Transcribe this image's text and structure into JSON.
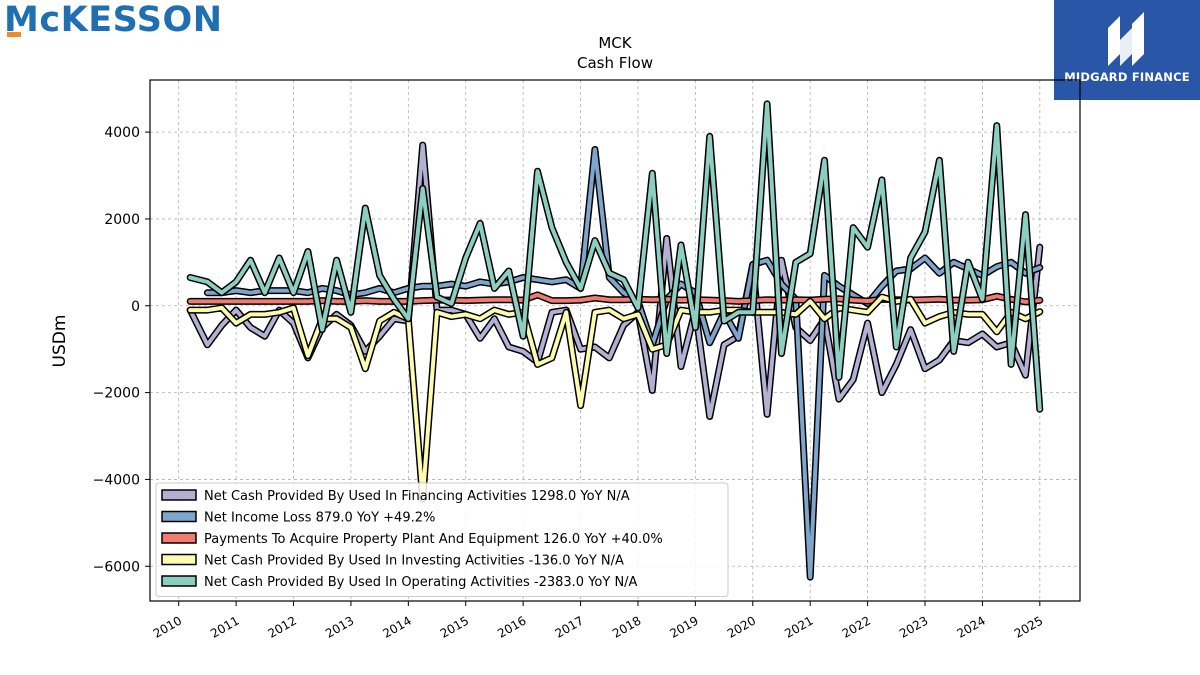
{
  "branding": {
    "company_logo_text": "McKESSON",
    "badge_text": "MIDGARD FINANCE"
  },
  "chart_data": {
    "type": "line",
    "title": "MCK",
    "subtitle": "Cash Flow",
    "ylabel": "USDm",
    "xlabel": "",
    "xlim": [
      2009.5,
      2025.7
    ],
    "ylim": [
      -6800,
      5200
    ],
    "x_ticks": [
      2010,
      2011,
      2012,
      2013,
      2014,
      2015,
      2016,
      2017,
      2018,
      2019,
      2020,
      2021,
      2022,
      2023,
      2024,
      2025
    ],
    "y_ticks": [
      -6000,
      -4000,
      -2000,
      0,
      2000,
      4000
    ],
    "grid": true,
    "legend_position": "lower-left",
    "series": [
      {
        "name": "Net Cash Provided By Used In Financing Activities  1298.0 YoY N/A",
        "color": "#b3b0d4",
        "x": [
          2010.2,
          2010.5,
          2010.75,
          2011.0,
          2011.25,
          2011.5,
          2011.75,
          2012.0,
          2012.25,
          2012.5,
          2012.75,
          2013.0,
          2013.25,
          2013.5,
          2013.75,
          2014.0,
          2014.25,
          2014.5,
          2014.75,
          2015.0,
          2015.25,
          2015.5,
          2015.75,
          2016.0,
          2016.25,
          2016.5,
          2016.75,
          2017.0,
          2017.25,
          2017.5,
          2017.75,
          2018.0,
          2018.25,
          2018.5,
          2018.75,
          2019.0,
          2019.25,
          2019.5,
          2019.75,
          2020.0,
          2020.25,
          2020.5,
          2020.75,
          2021.0,
          2021.25,
          2021.5,
          2021.75,
          2022.0,
          2022.25,
          2022.5,
          2022.75,
          2023.0,
          2023.25,
          2023.5,
          2023.75,
          2024.0,
          2024.25,
          2024.5,
          2024.75,
          2025.0
        ],
        "values": [
          -100,
          -900,
          -450,
          -100,
          -500,
          -700,
          -100,
          -400,
          -1200,
          -500,
          -200,
          -450,
          -1050,
          -700,
          -300,
          -350,
          3700,
          -100,
          -100,
          -200,
          -750,
          -300,
          -950,
          -1050,
          -1300,
          -150,
          -100,
          -1000,
          -950,
          -1200,
          -450,
          -150,
          -1950,
          1550,
          -1400,
          -100,
          -2550,
          -900,
          -700,
          950,
          -2500,
          1050,
          -500,
          -800,
          -300,
          -2150,
          -1700,
          -400,
          -2000,
          -1350,
          -550,
          -1450,
          -1250,
          -800,
          -850,
          -650,
          -950,
          -850,
          -1600,
          1350
        ]
      },
      {
        "name": "Net Income Loss  879.0 YoY +49.2%",
        "color": "#7ea6cc",
        "x": [
          2010.5,
          2010.75,
          2011.0,
          2011.25,
          2011.5,
          2011.75,
          2012.0,
          2012.25,
          2012.5,
          2012.75,
          2013.0,
          2013.25,
          2013.5,
          2013.75,
          2014.0,
          2014.25,
          2014.5,
          2014.75,
          2015.0,
          2015.25,
          2015.5,
          2015.75,
          2016.0,
          2016.25,
          2016.5,
          2016.75,
          2017.0,
          2017.25,
          2017.5,
          2017.75,
          2018.0,
          2018.25,
          2018.5,
          2018.75,
          2019.0,
          2019.25,
          2019.5,
          2019.75,
          2020.0,
          2020.25,
          2020.5,
          2020.75,
          2021.0,
          2021.25,
          2021.5,
          2021.75,
          2022.0,
          2022.25,
          2022.5,
          2022.75,
          2023.0,
          2023.25,
          2023.5,
          2023.75,
          2024.0,
          2024.25,
          2024.5,
          2024.75,
          2025.0
        ],
        "values": [
          300,
          300,
          350,
          300,
          350,
          350,
          350,
          300,
          400,
          350,
          250,
          300,
          400,
          300,
          400,
          450,
          450,
          500,
          450,
          550,
          500,
          550,
          650,
          600,
          550,
          600,
          400,
          3600,
          650,
          300,
          100,
          -900,
          150,
          500,
          300,
          -850,
          -150,
          -750,
          950,
          1050,
          500,
          150,
          -6250,
          700,
          450,
          250,
          50,
          450,
          800,
          850,
          1100,
          750,
          1000,
          850,
          700,
          900,
          1000,
          750,
          879
        ]
      },
      {
        "name": "Payments To Acquire Property Plant And Equipment  126.0 YoY +40.0%",
        "color": "#f07b72",
        "x": [
          2010.2,
          2010.5,
          2010.75,
          2011.0,
          2011.25,
          2011.5,
          2011.75,
          2012.0,
          2012.25,
          2012.5,
          2012.75,
          2013.0,
          2013.25,
          2013.5,
          2013.75,
          2014.0,
          2014.25,
          2014.5,
          2014.75,
          2015.0,
          2015.25,
          2015.5,
          2015.75,
          2016.0,
          2016.25,
          2016.5,
          2016.75,
          2017.0,
          2017.25,
          2017.5,
          2017.75,
          2018.0,
          2018.25,
          2018.5,
          2018.75,
          2019.0,
          2019.25,
          2019.5,
          2019.75,
          2020.0,
          2020.25,
          2020.5,
          2020.75,
          2021.0,
          2021.25,
          2021.5,
          2021.75,
          2022.0,
          2022.25,
          2022.5,
          2022.75,
          2023.0,
          2023.25,
          2023.5,
          2023.75,
          2024.0,
          2024.25,
          2024.5,
          2024.75,
          2025.0
        ],
        "values": [
          100,
          100,
          100,
          100,
          100,
          100,
          100,
          100,
          100,
          120,
          100,
          100,
          120,
          100,
          100,
          100,
          120,
          130,
          130,
          120,
          130,
          140,
          140,
          130,
          250,
          120,
          120,
          130,
          180,
          140,
          140,
          150,
          140,
          150,
          130,
          140,
          130,
          120,
          100,
          120,
          140,
          130,
          140,
          130,
          150,
          160,
          130,
          110,
          150,
          140,
          130,
          140,
          150,
          130,
          130,
          140,
          220,
          150,
          90,
          126
        ]
      },
      {
        "name": "Net Cash Provided By Used In Investing Activities  -136.0 YoY N/A",
        "color": "#fdfbb0",
        "x": [
          2010.2,
          2010.5,
          2010.75,
          2011.0,
          2011.25,
          2011.5,
          2011.75,
          2012.0,
          2012.25,
          2012.5,
          2012.75,
          2013.0,
          2013.25,
          2013.5,
          2013.75,
          2014.0,
          2014.25,
          2014.5,
          2014.75,
          2015.0,
          2015.25,
          2015.5,
          2015.75,
          2016.0,
          2016.25,
          2016.5,
          2016.75,
          2017.0,
          2017.25,
          2017.5,
          2017.75,
          2018.0,
          2018.25,
          2018.5,
          2018.75,
          2019.0,
          2019.25,
          2019.5,
          2019.75,
          2020.0,
          2020.25,
          2020.5,
          2020.75,
          2021.0,
          2021.25,
          2021.5,
          2021.75,
          2022.0,
          2022.25,
          2022.5,
          2022.75,
          2023.0,
          2023.25,
          2023.5,
          2023.75,
          2024.0,
          2024.25,
          2024.5,
          2024.75,
          2025.0
        ],
        "values": [
          -100,
          -100,
          -50,
          -400,
          -200,
          -200,
          -150,
          -50,
          -1150,
          -300,
          -300,
          -500,
          -1450,
          -350,
          -150,
          -300,
          -4450,
          -150,
          -250,
          -200,
          -300,
          -100,
          -200,
          -150,
          -1350,
          -1200,
          -150,
          -2300,
          -150,
          -100,
          -300,
          -200,
          -1000,
          -900,
          -100,
          -150,
          -150,
          -100,
          -100,
          -150,
          -150,
          -150,
          -200,
          100,
          -300,
          -50,
          -100,
          -150,
          200,
          100,
          150,
          -400,
          -250,
          -150,
          -200,
          -200,
          -600,
          -150,
          -300,
          -136
        ]
      },
      {
        "name": "Net Cash Provided By Used In Operating Activities  -2383.0 YoY N/A",
        "color": "#8ccfc0",
        "x": [
          2010.2,
          2010.5,
          2010.75,
          2011.0,
          2011.25,
          2011.5,
          2011.75,
          2012.0,
          2012.25,
          2012.5,
          2012.75,
          2013.0,
          2013.25,
          2013.5,
          2013.75,
          2014.0,
          2014.25,
          2014.5,
          2014.75,
          2015.0,
          2015.25,
          2015.5,
          2015.75,
          2016.0,
          2016.25,
          2016.5,
          2016.75,
          2017.0,
          2017.25,
          2017.5,
          2017.75,
          2018.0,
          2018.25,
          2018.5,
          2018.75,
          2019.0,
          2019.25,
          2019.5,
          2019.75,
          2020.0,
          2020.25,
          2020.5,
          2020.75,
          2021.0,
          2021.25,
          2021.5,
          2021.75,
          2022.0,
          2022.25,
          2022.5,
          2022.75,
          2023.0,
          2023.25,
          2023.5,
          2023.75,
          2024.0,
          2024.25,
          2024.5,
          2024.75,
          2025.0
        ],
        "values": [
          650,
          550,
          300,
          550,
          1050,
          300,
          1100,
          300,
          1250,
          -550,
          1050,
          -150,
          2250,
          700,
          150,
          -300,
          2700,
          200,
          50,
          1100,
          1900,
          400,
          800,
          -700,
          3100,
          1800,
          1000,
          400,
          1500,
          750,
          600,
          -50,
          3050,
          -1100,
          1400,
          -500,
          3900,
          -350,
          -150,
          -150,
          4650,
          -1100,
          1000,
          1200,
          3350,
          -1650,
          1800,
          1350,
          2900,
          -950,
          1100,
          1700,
          3350,
          -1050,
          1000,
          150,
          4150,
          -1350,
          2100,
          -2383
        ]
      }
    ]
  }
}
